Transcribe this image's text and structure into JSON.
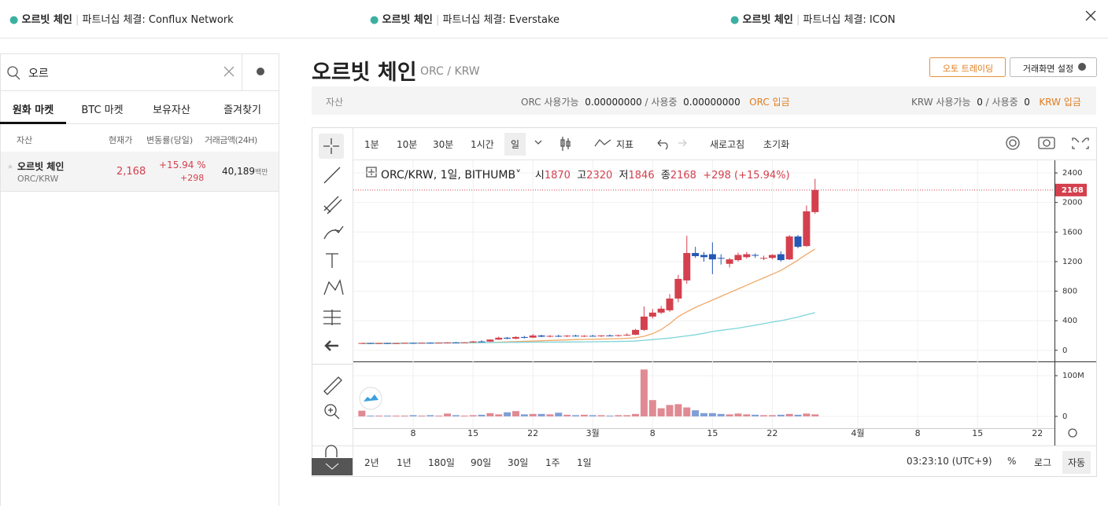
{
  "ui": {
    "ticker": [
      {
        "name": "오르빗 체인",
        "text": "파트너십 체결: Conflux Network"
      },
      {
        "name": "오르빗 체인",
        "text": "파트너십 체결: Everstake"
      },
      {
        "name": "오르빗 체인",
        "text": "파트너십 체결: ICON"
      }
    ],
    "search": "오르",
    "tabs": [
      "원화 마켓",
      "BTC 마켓",
      "보유자산",
      "즐겨찾기"
    ],
    "columns": [
      "자산",
      "현재가",
      "변동률(당일)",
      "거래금액(24H)"
    ],
    "row": {
      "name": "오르빗 체인",
      "pair": "ORC/KRW",
      "price": "2,168",
      "change": "+15.94 %",
      "diff": "+298",
      "amount": "40,189",
      "unit": "백만"
    },
    "title": "오르빗 체인",
    "pair": "ORC / KRW",
    "buttons": [
      "오토 트레이딩",
      "거래화면 설정"
    ],
    "assets": {
      "label": "자산",
      "orc_avail": "ORC 사용가능",
      "orc_avail_v": "0.00000000",
      "orc_used": "/ 사용중",
      "orc_used_v": "0.00000000",
      "orc_deposit": "ORC 입금",
      "krw_avail": "KRW 사용가능",
      "krw_avail_v": "0",
      "krw_used": "/ 사용중",
      "krw_used_v": "0",
      "krw_deposit": "KRW 입금"
    },
    "intervals": [
      "1분",
      "10분",
      "30분",
      "1시간",
      "일"
    ],
    "tools": [
      "지표",
      "새로고침",
      "초기화"
    ],
    "legend": {
      "symbol": "ORC/KRW, 1일, BITHUMB",
      "o": "시",
      "h": "고",
      "l": "저",
      "c": "종",
      "change": "+298 (+15.94%)"
    },
    "ranges": [
      "2년",
      "1년",
      "180일",
      "90일",
      "30일",
      "1주",
      "1일"
    ],
    "time": "03:23:10 (UTC+9)",
    "scale": [
      "%",
      "로그",
      "자동"
    ]
  },
  "chart_data": {
    "type": "candlestick",
    "x": [
      "02-02",
      "02-03",
      "02-04",
      "02-05",
      "02-06",
      "02-07",
      "02-08",
      "02-09",
      "02-10",
      "02-11",
      "02-12",
      "02-13",
      "02-14",
      "02-15",
      "02-16",
      "02-17",
      "02-18",
      "02-19",
      "02-20",
      "02-21",
      "02-22",
      "02-23",
      "02-24",
      "02-25",
      "02-26",
      "02-27",
      "02-28",
      "03-01",
      "03-02",
      "03-03",
      "03-04",
      "03-05",
      "03-06",
      "03-07",
      "03-08",
      "03-09",
      "03-10",
      "03-11",
      "03-12",
      "03-13",
      "03-14",
      "03-15",
      "03-16",
      "03-17",
      "03-18",
      "03-19",
      "03-20",
      "03-21",
      "03-22",
      "03-23",
      "03-24",
      "03-25",
      "03-26",
      "03-27"
    ],
    "open": [
      95,
      98,
      96,
      97,
      95,
      96,
      100,
      99,
      102,
      101,
      103,
      106,
      104,
      108,
      120,
      118,
      145,
      170,
      158,
      180,
      172,
      200,
      185,
      195,
      190,
      198,
      192,
      196,
      190,
      200,
      195,
      205,
      210,
      276,
      456,
      510,
      541,
      700,
      945,
      1316,
      1290,
      1300,
      1250,
      1170,
      1220,
      1260,
      1290,
      1240,
      1250,
      1300,
      1230,
      1540,
      1410,
      1870
    ],
    "high": [
      100,
      102,
      99,
      101,
      98,
      103,
      106,
      104,
      108,
      105,
      110,
      112,
      110,
      125,
      135,
      150,
      185,
      180,
      190,
      195,
      220,
      210,
      205,
      210,
      205,
      210,
      205,
      210,
      205,
      215,
      210,
      230,
      290,
      594,
      560,
      600,
      760,
      1020,
      1550,
      1400,
      1330,
      1460,
      1300,
      1250,
      1320,
      1330,
      1310,
      1280,
      1300,
      1340,
      1560,
      1560,
      1960,
      2320
    ],
    "low": [
      90,
      94,
      92,
      93,
      90,
      94,
      96,
      95,
      98,
      96,
      100,
      101,
      100,
      104,
      112,
      115,
      140,
      150,
      150,
      160,
      165,
      178,
      175,
      180,
      178,
      185,
      180,
      185,
      180,
      188,
      185,
      195,
      205,
      260,
      430,
      490,
      520,
      650,
      900,
      1250,
      1200,
      1030,
      1160,
      1120,
      1200,
      1240,
      1250,
      1220,
      1230,
      1200,
      1220,
      1380,
      1400,
      1846
    ],
    "close": [
      98,
      96,
      97,
      95,
      96,
      100,
      99,
      102,
      101,
      103,
      106,
      104,
      108,
      120,
      118,
      145,
      170,
      158,
      180,
      172,
      200,
      185,
      195,
      190,
      198,
      192,
      196,
      190,
      200,
      195,
      205,
      210,
      276,
      456,
      510,
      563,
      700,
      966,
      1316,
      1274,
      1260,
      1230,
      1240,
      1230,
      1290,
      1300,
      1280,
      1250,
      1290,
      1220,
      1540,
      1400,
      1880,
      2168
    ],
    "up_color": "#d4404e",
    "down_color": "#2458b5",
    "ma": [
      {
        "color": "#f0a868",
        "values": [
          95,
          95,
          96,
          96,
          96,
          97,
          97,
          98,
          98,
          99,
          99,
          100,
          100,
          101,
          103,
          106,
          110,
          113,
          117,
          121,
          125,
          129,
          133,
          137,
          141,
          145,
          148,
          150,
          152,
          155,
          158,
          162,
          170,
          190,
          225,
          280,
          360,
          456,
          520,
          580,
          630,
          680,
          730,
          780,
          830,
          880,
          930,
          980,
          1030,
          1080,
          1150,
          1220,
          1300,
          1370
        ]
      },
      {
        "color": "#7fd4d8",
        "values": [
          90,
          91,
          92,
          93,
          94,
          95,
          96,
          97,
          98,
          99,
          100,
          101,
          102,
          103,
          104,
          105,
          106,
          107,
          108,
          109,
          110,
          111,
          111,
          112,
          112,
          113,
          114,
          115,
          117,
          118,
          120,
          122,
          125,
          135,
          145,
          155,
          165,
          180,
          195,
          210,
          230,
          255,
          270,
          285,
          300,
          320,
          340,
          360,
          382,
          400,
          425,
          450,
          480,
          510
        ]
      }
    ],
    "volume": [
      14,
      2,
      2,
      2,
      2,
      2,
      3,
      2,
      3,
      2,
      7,
      3,
      2,
      3,
      4,
      8,
      5,
      10,
      13,
      5,
      6,
      6,
      5,
      9,
      4,
      3,
      4,
      3,
      3,
      2,
      3,
      3,
      6,
      115,
      40,
      20,
      28,
      30,
      22,
      15,
      8,
      8,
      6,
      5,
      7,
      5,
      4,
      3,
      3,
      4,
      6,
      4,
      7,
      5
    ],
    "volume_up_color": "#e08a93",
    "volume_down_color": "#7f9fd6",
    "xlim": [
      "02-01",
      "04-24"
    ],
    "xticks": [
      {
        "value": "02-08",
        "label": "8"
      },
      {
        "value": "02-15",
        "label": "15"
      },
      {
        "value": "02-22",
        "label": "22"
      },
      {
        "value": "03-01",
        "label": "3월"
      },
      {
        "value": "03-08",
        "label": "8"
      },
      {
        "value": "03-15",
        "label": "15"
      },
      {
        "value": "03-22",
        "label": "22"
      },
      {
        "value": "04-01",
        "label": "4월"
      },
      {
        "value": "04-08",
        "label": "8"
      },
      {
        "value": "04-15",
        "label": "15"
      },
      {
        "value": "04-22",
        "label": "22"
      }
    ],
    "ylim": [
      -140,
      2560
    ],
    "yticks": [
      0,
      400,
      800,
      1200,
      1600,
      2000,
      2400
    ],
    "volume_ylim": [
      -29,
      131
    ],
    "volume_yticks": [
      0,
      {
        "value": 100,
        "label": "100M"
      }
    ],
    "grid": true
  }
}
